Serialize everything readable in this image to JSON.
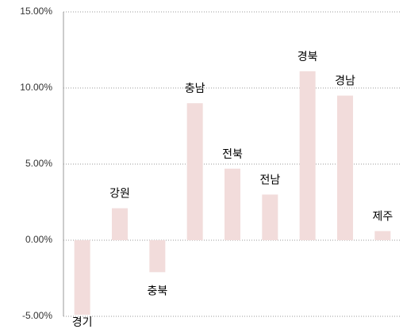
{
  "chart_data": {
    "type": "bar",
    "categories": [
      "경기",
      "강원",
      "충북",
      "충남",
      "전북",
      "전남",
      "경북",
      "경남",
      "제주"
    ],
    "values": [
      -4.9,
      2.1,
      -2.1,
      9.0,
      4.7,
      3.0,
      11.1,
      9.5,
      0.6
    ],
    "color": "#f2dcdb",
    "ylim": [
      -5,
      15
    ],
    "yticks": [
      {
        "value": -5,
        "label": "-5.00%"
      },
      {
        "value": 0,
        "label": "0.00%"
      },
      {
        "value": 5,
        "label": "5.00%"
      },
      {
        "value": 10,
        "label": "10.00%"
      },
      {
        "value": 15,
        "label": "15.00%"
      }
    ],
    "grid": true
  }
}
